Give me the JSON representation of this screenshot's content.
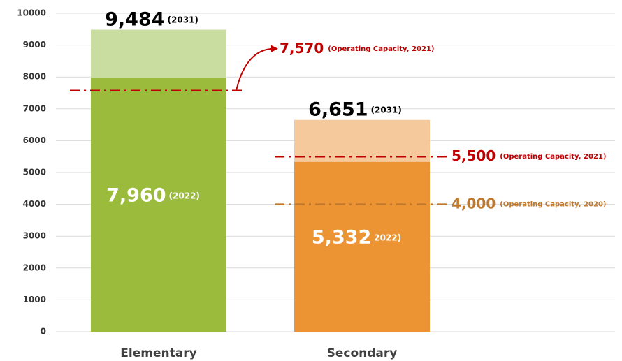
{
  "chart_data": {
    "type": "bar",
    "categories": [
      "Elementary",
      "Secondary"
    ],
    "series": [
      {
        "name": "2031",
        "values": [
          9484,
          6651
        ],
        "value_labels": [
          "9,484",
          "6,651"
        ],
        "value_notes": [
          "(2031)",
          "(2031)"
        ],
        "colors": [
          "#c8dd9f",
          "#f5c99c"
        ]
      },
      {
        "name": "2022",
        "values": [
          7960,
          5332
        ],
        "value_labels": [
          "7,960",
          "5,332"
        ],
        "value_notes": [
          "(2022)",
          "2022)"
        ],
        "colors": [
          "#9bbb3c",
          "#ec9433"
        ]
      }
    ],
    "reference_lines": [
      {
        "value": 7570,
        "label": "7,570",
        "note": "(Operating Capacity, 2021)",
        "color": "#c00000",
        "category": 0
      },
      {
        "value": 5500,
        "label": "5,500",
        "note": "(Operating Capacity, 2021)",
        "color": "#c00000",
        "category": 1
      },
      {
        "value": 4000,
        "label": "4,000",
        "note": "(Operating Capacity, 2020)",
        "color": "#c0782c",
        "category": 1
      }
    ],
    "ylim": [
      0,
      10000
    ],
    "yticks": [
      0,
      1000,
      2000,
      3000,
      4000,
      5000,
      6000,
      7000,
      8000,
      9000,
      10000
    ],
    "grid": true
  }
}
